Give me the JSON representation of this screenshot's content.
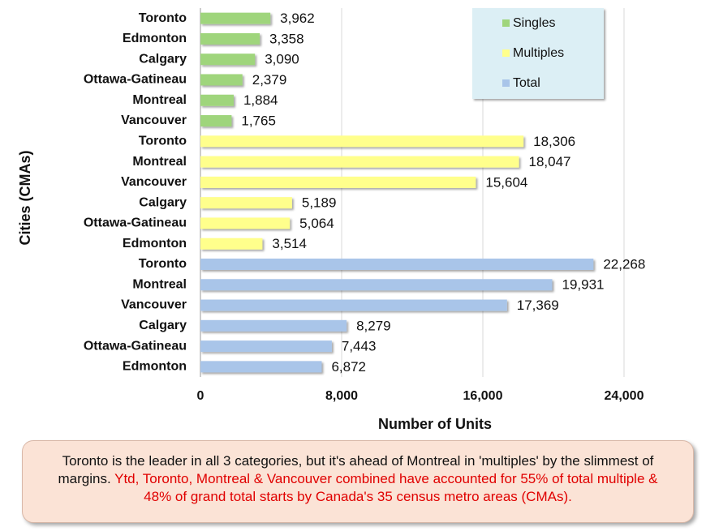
{
  "chart_data": {
    "type": "bar",
    "orientation": "horizontal",
    "xlabel": "Number of Units",
    "ylabel": "Cities (CMAs)",
    "categories": [
      "Toronto",
      "Edmonton",
      "Calgary",
      "Ottawa-Gatineau",
      "Montreal",
      "Vancouver",
      "Toronto",
      "Montreal",
      "Vancouver",
      "Calgary",
      "Ottawa-Gatineau",
      "Edmonton",
      "Toronto",
      "Montreal",
      "Vancouver",
      "Calgary",
      "Ottawa-Gatineau",
      "Edmonton"
    ],
    "series": [
      {
        "name": "Singles",
        "color": "#9fd57c",
        "values": [
          3962,
          3358,
          3090,
          2379,
          1884,
          1765,
          null,
          null,
          null,
          null,
          null,
          null,
          null,
          null,
          null,
          null,
          null,
          null
        ],
        "value_labels": [
          "3,962",
          "3,358",
          "3,090",
          "2,379",
          "1,884",
          "1,765",
          null,
          null,
          null,
          null,
          null,
          null,
          null,
          null,
          null,
          null,
          null,
          null
        ]
      },
      {
        "name": "Multiples",
        "color": "#ffff8c",
        "values": [
          null,
          null,
          null,
          null,
          null,
          null,
          18306,
          18047,
          15604,
          5189,
          5064,
          3514,
          null,
          null,
          null,
          null,
          null,
          null
        ],
        "value_labels": [
          null,
          null,
          null,
          null,
          null,
          null,
          "18,306",
          "18,047",
          "15,604",
          "5,189",
          "5,064",
          "3,514",
          null,
          null,
          null,
          null,
          null,
          null
        ]
      },
      {
        "name": "Total",
        "color": "#a9c5e9",
        "values": [
          null,
          null,
          null,
          null,
          null,
          null,
          null,
          null,
          null,
          null,
          null,
          null,
          22268,
          19931,
          17369,
          8279,
          7443,
          6872
        ],
        "value_labels": [
          null,
          null,
          null,
          null,
          null,
          null,
          null,
          null,
          null,
          null,
          null,
          null,
          "22,268",
          "19,931",
          "17,369",
          "8,279",
          "7,443",
          "6,872"
        ]
      }
    ],
    "xlim": [
      0,
      28000
    ],
    "xticks": [
      0,
      {
        "value": 8000,
        "label": "8,000"
      },
      {
        "value": 16000,
        "label": "16,000"
      },
      {
        "value": 24000,
        "label": "24,000"
      }
    ],
    "grid": true,
    "legend": "top-right",
    "annotation": [
      "Toronto is the leader in all 3 categories, but it's  ahead of Montreal in 'multiples'  by the slimmest of margins.",
      "Ytd, Toronto, Montreal & Vancouver combined have accounted for 55% of total multiple & 48% of grand total starts by Canada's 35 census metro areas (CMAs)."
    ]
  }
}
